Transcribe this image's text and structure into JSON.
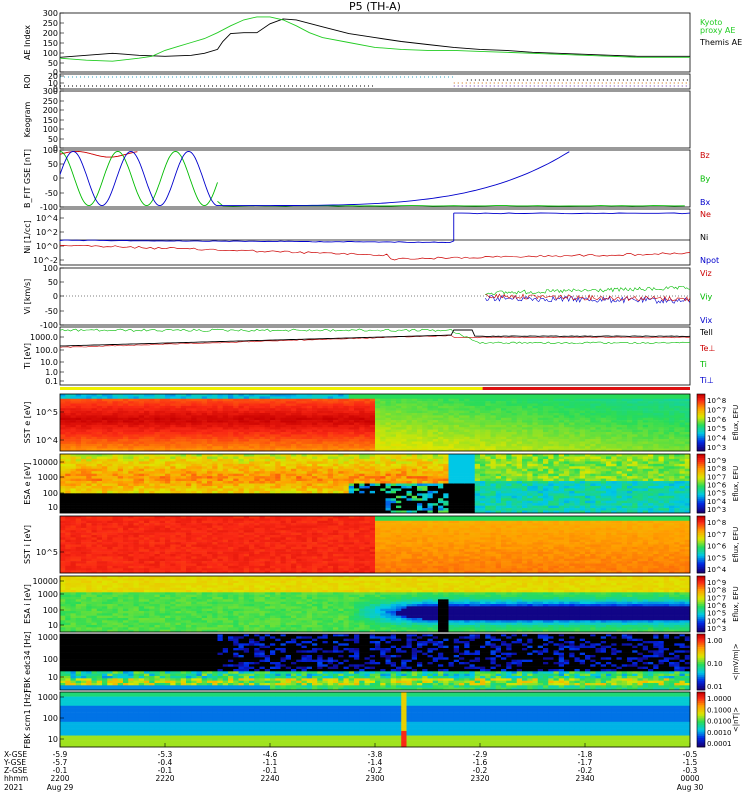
{
  "title": "P5 (TH-A)",
  "chart_data": [
    {
      "type": "line",
      "ylabel": "AE Index",
      "ylim": [
        0,
        300
      ],
      "yticks": [
        "300",
        "250",
        "200",
        "150",
        "100",
        "50",
        "0"
      ],
      "legend": [
        {
          "label": "Kyoto\nproxy AE",
          "color": "#22cc22"
        },
        {
          "label": "Themis AE",
          "color": "#000000"
        }
      ],
      "series": [
        {
          "name": "Themis AE",
          "color": "#000000",
          "x": [
            0,
            10,
            20,
            30,
            40,
            50,
            55,
            60,
            62,
            65,
            70,
            75,
            80,
            85,
            90,
            100,
            110,
            120,
            130,
            140,
            150,
            160,
            170,
            180,
            190,
            200,
            210,
            220,
            230,
            240
          ],
          "y": [
            75,
            85,
            95,
            85,
            80,
            85,
            95,
            115,
            155,
            195,
            200,
            200,
            245,
            270,
            265,
            230,
            195,
            175,
            155,
            140,
            125,
            115,
            110,
            100,
            95,
            90,
            85,
            80,
            80,
            80
          ]
        },
        {
          "name": "Kyoto proxy AE",
          "color": "#22cc22",
          "x": [
            0,
            10,
            20,
            30,
            35,
            40,
            45,
            50,
            55,
            60,
            65,
            70,
            75,
            80,
            85,
            90,
            95,
            100,
            110,
            120,
            130,
            140,
            150,
            160,
            170,
            180,
            190,
            200,
            210,
            220,
            230,
            240
          ],
          "y": [
            70,
            60,
            55,
            70,
            80,
            110,
            130,
            150,
            170,
            200,
            235,
            265,
            280,
            280,
            265,
            235,
            200,
            175,
            150,
            125,
            115,
            110,
            110,
            105,
            100,
            95,
            90,
            85,
            80,
            75,
            75,
            75
          ]
        }
      ]
    },
    {
      "type": "scatter",
      "ylabel": "ROI",
      "yticks": [
        "20",
        "10",
        "0"
      ]
    },
    {
      "type": "line",
      "ylabel": "Keogram",
      "ylim": [
        0,
        300
      ],
      "yticks": [
        "300",
        "250",
        "200",
        "150",
        "100",
        "50",
        "0"
      ]
    },
    {
      "type": "line",
      "ylabel": "B_FIT GSE [nT]",
      "ylim": [
        -100,
        100
      ],
      "yticks": [
        "100",
        "50",
        "0",
        "-50",
        "-100"
      ],
      "legend": [
        {
          "label": "Bz",
          "color": "#cc0000"
        },
        {
          "label": "By",
          "color": "#00bb00"
        },
        {
          "label": "Bx",
          "color": "#0000cc"
        }
      ]
    },
    {
      "type": "line",
      "ylabel": "Ni [1/cc]",
      "yticks": [
        "10^4",
        "10^2",
        "10^0",
        "10^-2"
      ],
      "legend": [
        {
          "label": "Ne",
          "color": "#cc0000"
        },
        {
          "label": "Ni",
          "color": "#000000"
        },
        {
          "label": "Npot",
          "color": "#0000cc"
        }
      ]
    },
    {
      "type": "line",
      "ylabel": "Vi [km/s]",
      "ylim": [
        -100,
        100
      ],
      "yticks": [
        "100",
        "50",
        "0",
        "-50",
        "-100"
      ],
      "legend": [
        {
          "label": "Viz",
          "color": "#cc0000"
        },
        {
          "label": "Viy",
          "color": "#00bb00"
        },
        {
          "label": "Vix",
          "color": "#0000cc"
        }
      ]
    },
    {
      "type": "line",
      "ylabel": "Ti [eV]",
      "yticks": [
        "1000.0",
        "100.0",
        "10.0",
        "1.0",
        "0.1"
      ],
      "legend": [
        {
          "label": "Tell",
          "color": "#000000"
        },
        {
          "label": "Te⊥",
          "color": "#cc0000"
        },
        {
          "label": "Ti",
          "color": "#00bb00"
        },
        {
          "label": "Ti⊥",
          "color": "#0000cc"
        }
      ]
    },
    {
      "type": "heatmap",
      "ylabel": "SST e [eV]",
      "yticks": [
        "10^5",
        "10^4"
      ],
      "colorbar": "Eflux, EFU",
      "cticks": [
        "10^8",
        "10^7",
        "10^6",
        "10^5",
        "10^4",
        "10^3"
      ]
    },
    {
      "type": "heatmap",
      "ylabel": "ESA e [eV]",
      "yticks": [
        "10000",
        "1000",
        "100",
        "10"
      ],
      "colorbar": "Eflux, EFU",
      "cticks": [
        "10^9",
        "10^8",
        "10^7",
        "10^6",
        "10^5",
        "10^4",
        "10^3"
      ]
    },
    {
      "type": "heatmap",
      "ylabel": "SST i [eV]",
      "yticks": [
        "10^5"
      ],
      "colorbar": "Eflux, EFU",
      "cticks": [
        "10^8",
        "10^7",
        "10^6",
        "10^5",
        "10^4"
      ]
    },
    {
      "type": "heatmap",
      "ylabel": "ESA i [eV]",
      "yticks": [
        "10000",
        "1000",
        "100",
        "10"
      ],
      "colorbar": "Eflux, EFU",
      "cticks": [
        "10^9",
        "10^8",
        "10^7",
        "10^6",
        "10^5",
        "10^4",
        "10^3"
      ]
    },
    {
      "type": "heatmap",
      "ylabel": "FBK edc34 [Hz]",
      "yticks": [
        "1000",
        "100",
        "10"
      ],
      "colorbar": "<|mV/m|>",
      "cticks": [
        "1.00",
        "0.10",
        "0.01"
      ]
    },
    {
      "type": "heatmap",
      "ylabel": "FBK scm1 [Hz]",
      "yticks": [
        "1000",
        "100",
        "10"
      ],
      "colorbar": "<|nT|>",
      "cticks": [
        "1.0000",
        "0.1000",
        "0.0100",
        "0.0010",
        "0.0001"
      ]
    }
  ],
  "xaxis": {
    "row_labels": [
      "X-GSE",
      "Y-GSE",
      "Z-GSE",
      "hhmm",
      "2021"
    ],
    "ticks": [
      {
        "vals": [
          "-5.9",
          "-5.7",
          "-0.1",
          "2200",
          "Aug 29"
        ]
      },
      {
        "vals": [
          "-5.3",
          "-0.4",
          "-0.1",
          "2220",
          ""
        ]
      },
      {
        "vals": [
          "-4.6",
          "-1.1",
          "-0.1",
          "2240",
          ""
        ]
      },
      {
        "vals": [
          "-3.8",
          "-1.4",
          "-0.2",
          "2300",
          ""
        ]
      },
      {
        "vals": [
          "-2.9",
          "-1.6",
          "-0.2",
          "2320",
          ""
        ]
      },
      {
        "vals": [
          "-1.8",
          "-1.7",
          "-0.2",
          "2340",
          ""
        ]
      },
      {
        "vals": [
          "-0.5",
          "-1.5",
          "-0.3",
          "0000",
          "Aug 30"
        ]
      }
    ]
  }
}
